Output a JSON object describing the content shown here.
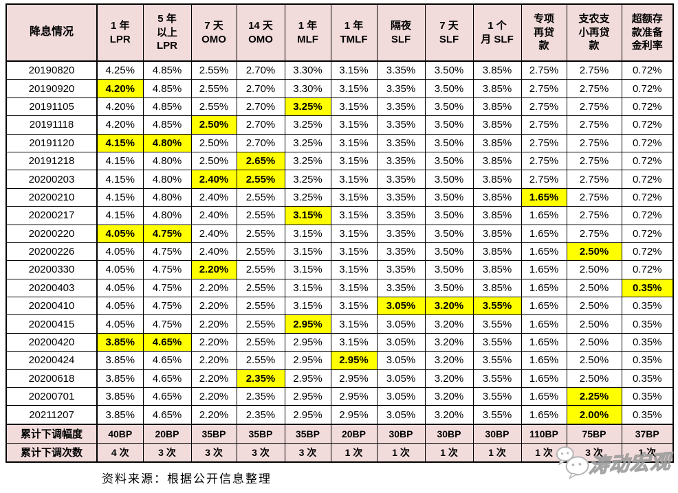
{
  "colors": {
    "header_bg": "#f2dcdb",
    "highlight_bg": "#ffff00",
    "border": "#000000",
    "row_bg": "#ffffff",
    "watermark_gray": "#9b9b9b"
  },
  "table": {
    "corner_label": "降息情况",
    "columns": [
      {
        "id": "lpr-1y",
        "lines": [
          "1 年",
          "LPR"
        ]
      },
      {
        "id": "lpr-5y",
        "lines": [
          "5 年",
          "以上",
          "LPR"
        ]
      },
      {
        "id": "omo-7d",
        "lines": [
          "7 天",
          "OMO"
        ]
      },
      {
        "id": "omo-14d",
        "lines": [
          "14 天",
          "OMO"
        ]
      },
      {
        "id": "mlf-1y",
        "lines": [
          "1 年",
          "MLF"
        ]
      },
      {
        "id": "tmlf-1y",
        "lines": [
          "1 年",
          "TMLF"
        ]
      },
      {
        "id": "slf-on",
        "lines": [
          "隔夜",
          "SLF"
        ]
      },
      {
        "id": "slf-7d",
        "lines": [
          "7 天",
          "SLF"
        ]
      },
      {
        "id": "slf-1m",
        "lines": [
          "1 个",
          "月 SLF"
        ]
      },
      {
        "id": "special-relending",
        "lines": [
          "专项",
          "再贷",
          "款"
        ]
      },
      {
        "id": "agri-small-relending",
        "lines": [
          "支农支",
          "小再贷",
          "款"
        ]
      },
      {
        "id": "excess-reserve-rate",
        "lines": [
          "超额存",
          "款准备",
          "金利率"
        ]
      }
    ],
    "rows": [
      {
        "date": "20190820",
        "values": [
          "4.25%",
          "4.85%",
          "2.55%",
          "2.70%",
          "3.30%",
          "3.15%",
          "3.35%",
          "3.50%",
          "3.85%",
          "2.75%",
          "2.75%",
          "0.72%"
        ],
        "hl": []
      },
      {
        "date": "20190920",
        "values": [
          "4.20%",
          "4.85%",
          "2.55%",
          "2.70%",
          "3.30%",
          "3.15%",
          "3.35%",
          "3.50%",
          "3.85%",
          "2.75%",
          "2.75%",
          "0.72%"
        ],
        "hl": [
          0
        ]
      },
      {
        "date": "20191105",
        "values": [
          "4.20%",
          "4.85%",
          "2.55%",
          "2.70%",
          "3.25%",
          "3.15%",
          "3.35%",
          "3.50%",
          "3.85%",
          "2.75%",
          "2.75%",
          "0.72%"
        ],
        "hl": [
          4
        ]
      },
      {
        "date": "20191118",
        "values": [
          "4.20%",
          "4.85%",
          "2.50%",
          "2.70%",
          "3.25%",
          "3.15%",
          "3.35%",
          "3.50%",
          "3.85%",
          "2.75%",
          "2.75%",
          "0.72%"
        ],
        "hl": [
          2
        ]
      },
      {
        "date": "20191120",
        "values": [
          "4.15%",
          "4.80%",
          "2.50%",
          "2.70%",
          "3.25%",
          "3.15%",
          "3.35%",
          "3.50%",
          "3.85%",
          "2.75%",
          "2.75%",
          "0.72%"
        ],
        "hl": [
          0,
          1
        ]
      },
      {
        "date": "20191218",
        "values": [
          "4.15%",
          "4.80%",
          "2.50%",
          "2.65%",
          "3.25%",
          "3.15%",
          "3.35%",
          "3.50%",
          "3.85%",
          "2.75%",
          "2.75%",
          "0.72%"
        ],
        "hl": [
          3
        ]
      },
      {
        "date": "20200203",
        "values": [
          "4.15%",
          "4.80%",
          "2.40%",
          "2.55%",
          "3.25%",
          "3.15%",
          "3.35%",
          "3.50%",
          "3.85%",
          "2.75%",
          "2.75%",
          "0.72%"
        ],
        "hl": [
          2,
          3
        ]
      },
      {
        "date": "20200210",
        "values": [
          "4.15%",
          "4.80%",
          "2.40%",
          "2.55%",
          "3.25%",
          "3.15%",
          "3.35%",
          "3.50%",
          "3.85%",
          "1.65%",
          "2.75%",
          "0.72%"
        ],
        "hl": [
          9
        ]
      },
      {
        "date": "20200217",
        "values": [
          "4.15%",
          "4.80%",
          "2.40%",
          "2.55%",
          "3.15%",
          "3.15%",
          "3.35%",
          "3.50%",
          "3.85%",
          "1.65%",
          "2.75%",
          "0.72%"
        ],
        "hl": [
          4
        ]
      },
      {
        "date": "20200220",
        "values": [
          "4.05%",
          "4.75%",
          "2.40%",
          "2.55%",
          "3.15%",
          "3.15%",
          "3.35%",
          "3.50%",
          "3.85%",
          "1.65%",
          "2.75%",
          "0.72%"
        ],
        "hl": [
          0,
          1
        ]
      },
      {
        "date": "20200226",
        "values": [
          "4.05%",
          "4.75%",
          "2.40%",
          "2.55%",
          "3.15%",
          "3.15%",
          "3.35%",
          "3.50%",
          "3.85%",
          "1.65%",
          "2.50%",
          "0.72%"
        ],
        "hl": [
          10
        ]
      },
      {
        "date": "20200330",
        "values": [
          "4.05%",
          "4.75%",
          "2.20%",
          "2.55%",
          "3.15%",
          "3.15%",
          "3.35%",
          "3.50%",
          "3.85%",
          "1.65%",
          "2.50%",
          "0.72%"
        ],
        "hl": [
          2
        ]
      },
      {
        "date": "20200403",
        "values": [
          "4.05%",
          "4.75%",
          "2.20%",
          "2.55%",
          "3.15%",
          "3.15%",
          "3.35%",
          "3.50%",
          "3.85%",
          "1.65%",
          "2.50%",
          "0.35%"
        ],
        "hl": [
          11
        ]
      },
      {
        "date": "20200410",
        "values": [
          "4.05%",
          "4.75%",
          "2.20%",
          "2.55%",
          "3.15%",
          "3.15%",
          "3.05%",
          "3.20%",
          "3.55%",
          "1.65%",
          "2.50%",
          "0.35%"
        ],
        "hl": [
          6,
          7,
          8
        ]
      },
      {
        "date": "20200415",
        "values": [
          "4.05%",
          "4.75%",
          "2.20%",
          "2.55%",
          "2.95%",
          "3.15%",
          "3.05%",
          "3.20%",
          "3.55%",
          "1.65%",
          "2.50%",
          "0.35%"
        ],
        "hl": [
          4
        ]
      },
      {
        "date": "20200420",
        "values": [
          "3.85%",
          "4.65%",
          "2.20%",
          "2.55%",
          "2.95%",
          "3.15%",
          "3.05%",
          "3.20%",
          "3.55%",
          "1.65%",
          "2.50%",
          "0.35%"
        ],
        "hl": [
          0,
          1
        ]
      },
      {
        "date": "20200424",
        "values": [
          "3.85%",
          "4.65%",
          "2.20%",
          "2.55%",
          "2.95%",
          "2.95%",
          "3.05%",
          "3.20%",
          "3.55%",
          "1.65%",
          "2.50%",
          "0.35%"
        ],
        "hl": [
          5
        ]
      },
      {
        "date": "20200618",
        "values": [
          "3.85%",
          "4.65%",
          "2.20%",
          "2.35%",
          "2.95%",
          "2.95%",
          "3.05%",
          "3.20%",
          "3.55%",
          "1.65%",
          "2.50%",
          "0.35%"
        ],
        "hl": [
          3
        ]
      },
      {
        "date": "20200701",
        "values": [
          "3.85%",
          "4.65%",
          "2.20%",
          "2.35%",
          "2.95%",
          "2.95%",
          "3.05%",
          "3.20%",
          "3.55%",
          "1.65%",
          "2.25%",
          "0.35%"
        ],
        "hl": [
          10
        ]
      },
      {
        "date": "20211207",
        "values": [
          "3.85%",
          "4.65%",
          "2.20%",
          "2.35%",
          "2.95%",
          "2.95%",
          "3.05%",
          "3.20%",
          "3.55%",
          "1.65%",
          "2.00%",
          "0.35%"
        ],
        "hl": [
          10
        ]
      }
    ],
    "summary": [
      {
        "label": "累计下调幅度",
        "values": [
          "40BP",
          "20BP",
          "35BP",
          "35BP",
          "35BP",
          "20BP",
          "30BP",
          "30BP",
          "30BP",
          "110BP",
          "75BP",
          "37BP"
        ]
      },
      {
        "label": "累计下调次数",
        "values": [
          "4 次",
          "3 次",
          "3 次",
          "3 次",
          "3 次",
          "1 次",
          "1 次",
          "1 次",
          "1 次",
          "1 次",
          "3 次",
          "1 次"
        ]
      }
    ]
  },
  "footer": {
    "source_note": "资料来源：根据公开信息整理"
  },
  "watermark": {
    "text": "涛动宏观",
    "icon": "wechat-icon"
  }
}
